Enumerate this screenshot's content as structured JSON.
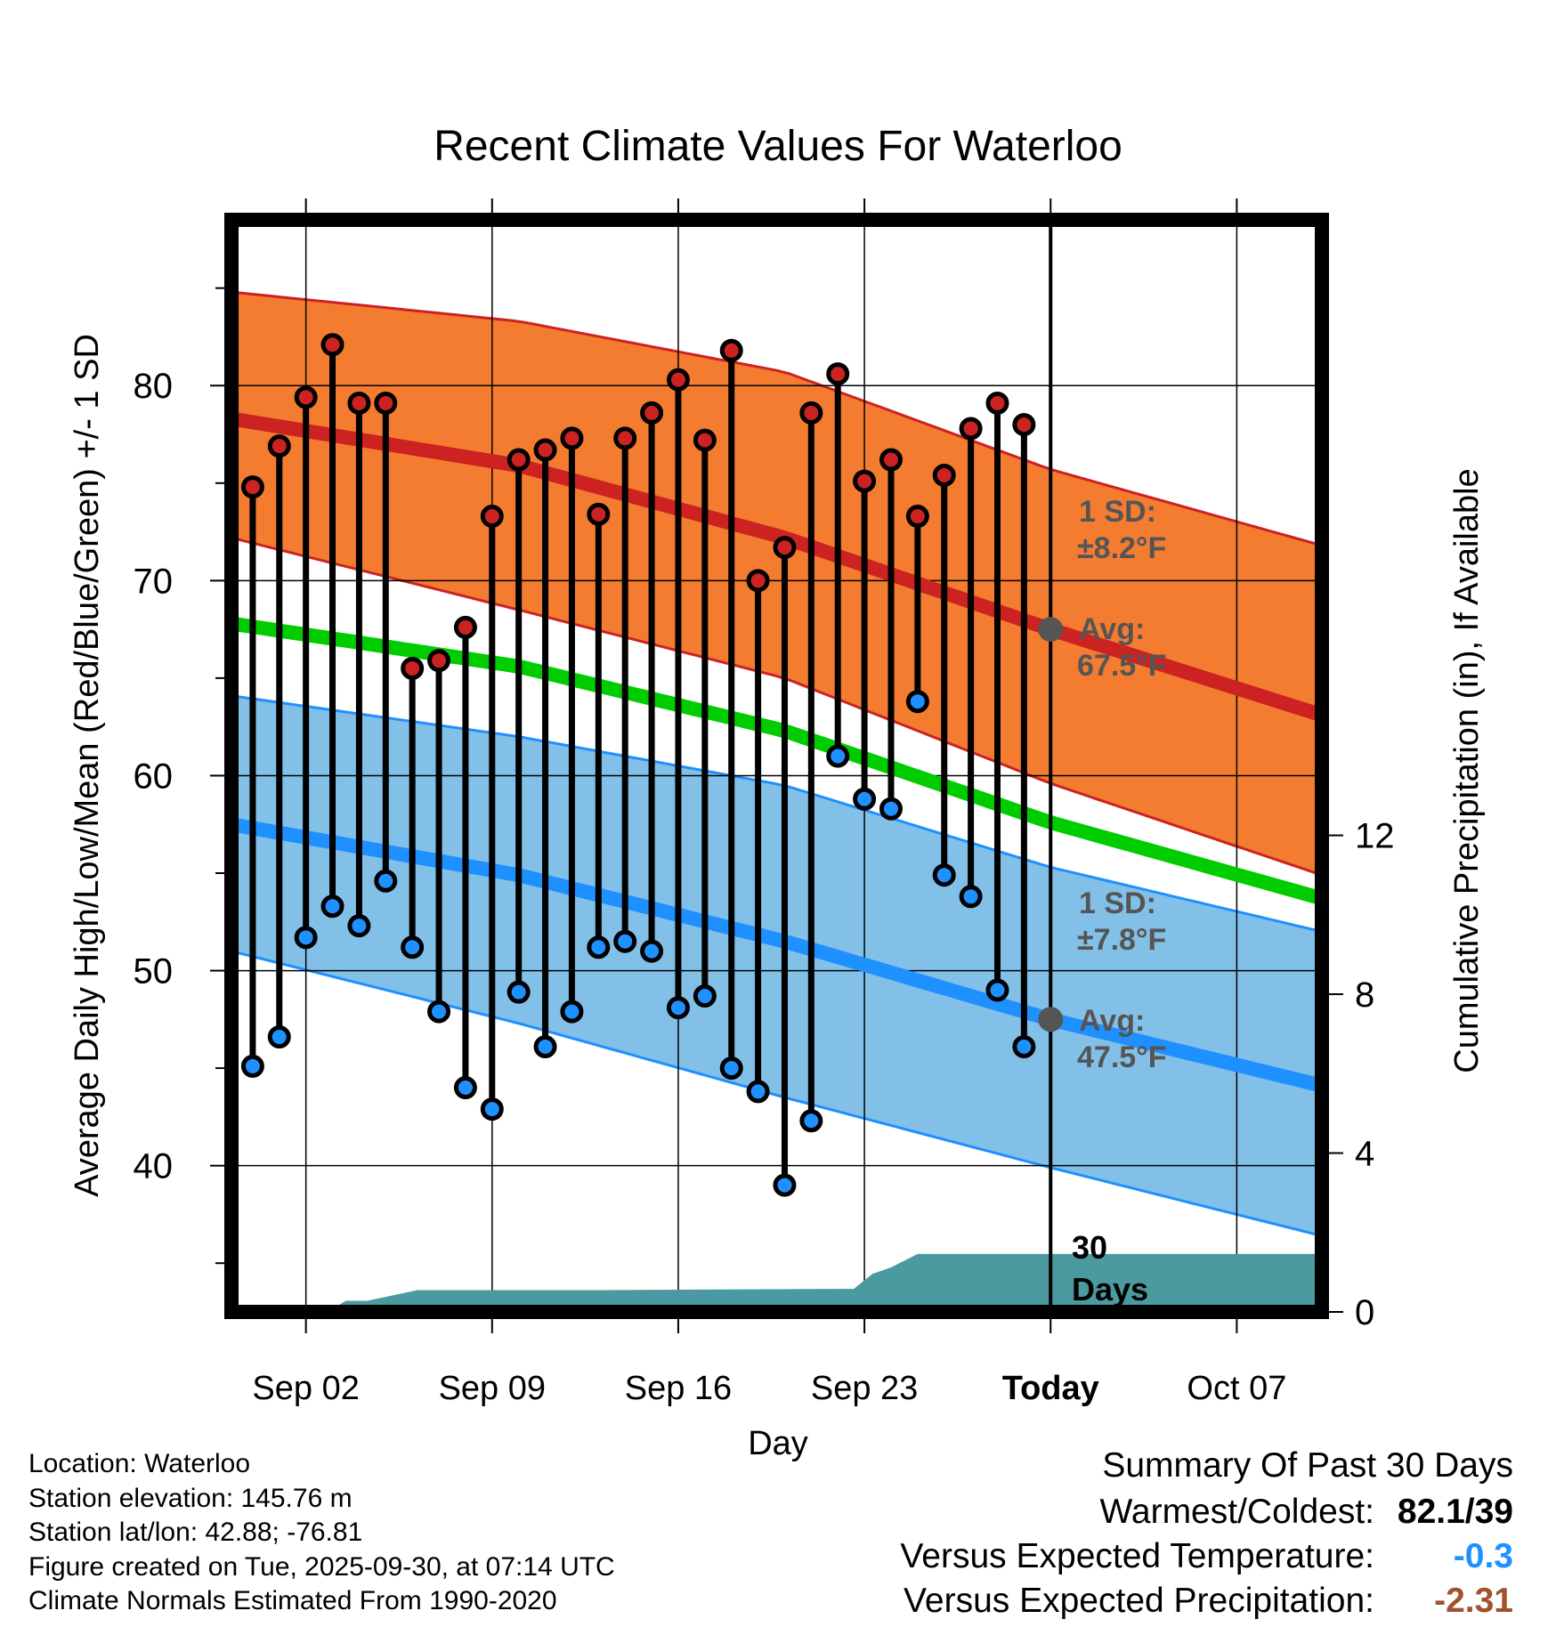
{
  "chart_data": {
    "type": "line",
    "title": "Recent Climate Values For Waterloo",
    "xlabel": "Day",
    "ylabel": "Average Daily High/Low/Mean (Red/Blue/Green) +/- 1 SD",
    "ylabel_right": "Cumulative Precipitation (in), If Available",
    "ylim": [
      32.5,
      88.5
    ],
    "ylim_right": [
      0,
      27.5
    ],
    "xlim": [
      -1.8,
      39.2
    ],
    "y_ticks": [
      40,
      50,
      60,
      70,
      80
    ],
    "y_ticks_right": [
      0,
      4,
      8,
      12
    ],
    "x_ticks": [
      {
        "day": 1,
        "label": "Sep 02"
      },
      {
        "day": 8,
        "label": "Sep 09"
      },
      {
        "day": 15,
        "label": "Sep 16"
      },
      {
        "day": 22,
        "label": "Sep 23"
      },
      {
        "day": 29,
        "label": "Today"
      },
      {
        "day": 36,
        "label": "Oct 07"
      }
    ],
    "today_day": 29,
    "days": [
      -1,
      0,
      1,
      2,
      3,
      4,
      5,
      6,
      7,
      8,
      9,
      10,
      11,
      12,
      13,
      14,
      15,
      16,
      17,
      18,
      19,
      20,
      21,
      22,
      23,
      24,
      25,
      26,
      27,
      28
    ],
    "highs": [
      74.8,
      76.9,
      79.4,
      82.1,
      79.1,
      79.1,
      65.5,
      65.9,
      67.6,
      73.3,
      76.2,
      76.7,
      77.3,
      73.4,
      77.3,
      78.6,
      80.3,
      77.2,
      81.8,
      70,
      71.7,
      78.6,
      80.6,
      75.1,
      76.2,
      73.3,
      75.4,
      77.8,
      79.1,
      78
    ],
    "lows": [
      45.1,
      46.6,
      51.7,
      53.3,
      52.3,
      54.6,
      51.2,
      47.9,
      44,
      42.9,
      48.9,
      46.1,
      47.9,
      51.2,
      51.5,
      51,
      48.1,
      48.7,
      45,
      43.8,
      39,
      42.3,
      61,
      58.8,
      58.3,
      63.8,
      54.9,
      53.8,
      49,
      46.1
    ],
    "series": [
      {
        "name": "Average High",
        "color": "#cc2222",
        "x": [
          -1.8,
          9,
          19,
          29,
          39.2
        ],
        "values": [
          78.3,
          75.9,
          72.2,
          67.5,
          63.1
        ]
      },
      {
        "name": "High +1 SD",
        "color": "#cc2222",
        "x": [
          -1.8,
          9,
          19,
          29,
          39.2
        ],
        "values": [
          84.8,
          83.3,
          80.7,
          75.7,
          71.8
        ]
      },
      {
        "name": "High -1 SD",
        "color": "#cc2222",
        "x": [
          -1.8,
          9,
          19,
          29,
          39.2
        ],
        "values": [
          72.2,
          68.5,
          65,
          59.6,
          54.9
        ]
      },
      {
        "name": "Average Mean",
        "color": "#00cc00",
        "x": [
          -1.8,
          9,
          19,
          29,
          39.2
        ],
        "values": [
          67.8,
          65.6,
          62.3,
          57.6,
          53.7
        ]
      },
      {
        "name": "Average Low",
        "color": "#1e90ff",
        "x": [
          -1.8,
          9,
          19,
          29,
          39.2
        ],
        "values": [
          57.5,
          54.9,
          51.5,
          47.5,
          44.1
        ]
      },
      {
        "name": "Low +1 SD",
        "color": "#1e90ff",
        "x": [
          -1.8,
          9,
          19,
          29,
          39.2
        ],
        "values": [
          64.1,
          62,
          59.5,
          55.3,
          52
        ]
      },
      {
        "name": "Low -1 SD",
        "color": "#1e90ff",
        "x": [
          -1.8,
          9,
          19,
          29,
          39.2
        ],
        "values": [
          51,
          47.3,
          43.5,
          39.9,
          36.4
        ]
      }
    ],
    "precip_series": {
      "name": "Cumulative Precipitation",
      "color": "#4a9aa0",
      "x": [
        -1.8,
        1.8,
        2.5,
        3.3,
        5.2,
        12.2,
        21,
        21.6,
        22.3,
        23,
        24,
        39.2
      ],
      "values": [
        0,
        0,
        0.28,
        0.28,
        0.55,
        0.55,
        0.58,
        0.58,
        0.96,
        1.12,
        1.46,
        1.46
      ]
    },
    "annotations": {
      "high_sd_label": "1 SD:",
      "high_sd_value": "±8.2°F",
      "high_avg_label": "Avg:",
      "high_avg_value": "67.5°F",
      "low_sd_label": "1 SD:",
      "low_sd_value": "±7.8°F",
      "low_avg_label": "Avg:",
      "low_avg_value": "47.5°F",
      "days_num": "30",
      "days_word": "Days",
      "high_avg_marker": 67.5,
      "low_avg_marker": 47.5
    }
  },
  "footer": {
    "location": "Location: Waterloo",
    "elevation": "Station elevation: 145.76 m",
    "latlon": "Station lat/lon: 42.88; -76.81",
    "created": "Figure created on Tue, 2025-09-30, at 07:14 UTC",
    "normals": "Climate Normals Estimated From 1990-2020"
  },
  "summary": {
    "title": "Summary Of Past 30 Days",
    "warmest_label": "Warmest/Coldest:",
    "warmest_value": "82.1/39",
    "temp_label": "Versus Expected Temperature:",
    "temp_value": "-0.3",
    "temp_color": "#1e90ff",
    "precip_label": "Versus Expected Precipitation:",
    "precip_value": "-2.31",
    "precip_color": "#a0522d"
  }
}
